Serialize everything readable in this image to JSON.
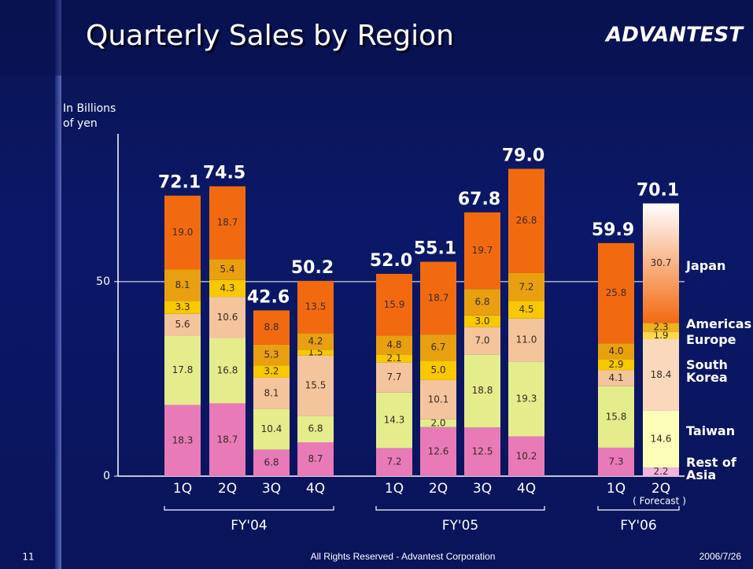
{
  "chart_data": {
    "type": "stacked_bar",
    "title": "Quarterly Sales by Region",
    "logo": "ADVANTEST",
    "ylabel": [
      "In Billions",
      "of yen"
    ],
    "categories": [
      "1Q",
      "2Q",
      "3Q",
      "4Q",
      "1Q",
      "2Q",
      "3Q",
      "4Q",
      "1Q",
      "2Q"
    ],
    "groups": [
      "FY'04",
      "FY'05",
      "FY'06"
    ],
    "annotation": "( Forecast )",
    "ylim": [
      0,
      88
    ],
    "yticks": [
      0,
      50
    ],
    "grid": true,
    "series": [
      {
        "name": "Rest of Asia",
        "color": "#e87ab8",
        "forecast_color": "#f4b4dc",
        "values": [
          18.3,
          18.7,
          6.8,
          8.7,
          7.2,
          12.6,
          12.5,
          10.2,
          7.3,
          2.2
        ],
        "value_labels": [
          "18.3",
          "18.7",
          "6.8",
          "8.7",
          "7.2",
          "12.6",
          "12.5",
          "10.2",
          "7.3",
          "2.2"
        ]
      },
      {
        "name": "Taiwan",
        "color": "#e4ec8c",
        "forecast_color": "#fbfdb8",
        "values": [
          17.8,
          16.8,
          10.4,
          6.8,
          14.3,
          2.0,
          18.8,
          19.3,
          15.8,
          14.6
        ],
        "value_labels": [
          "17.8",
          "16.8",
          "10.4",
          "6.8",
          "14.3",
          "2.0",
          "18.8",
          "19.3",
          "15.8",
          "14.6"
        ]
      },
      {
        "name": "South Korea",
        "color": "#f4c49c",
        "forecast_color": "#fad8bc",
        "values": [
          5.6,
          10.6,
          8.1,
          15.5,
          7.7,
          10.1,
          7.0,
          11.0,
          4.1,
          18.4
        ],
        "value_labels": [
          "5.6",
          "10.6",
          "8.1",
          "15.5",
          "7.7",
          "10.1",
          "7.0",
          "11.0",
          "4.1",
          "18.4"
        ]
      },
      {
        "name": "Europe",
        "color": "#f8c800",
        "forecast_color": "#fcd84c",
        "values": [
          3.3,
          4.3,
          3.2,
          1.5,
          2.1,
          5.0,
          3.0,
          4.5,
          2.9,
          1.9
        ],
        "value_labels": [
          "3.3",
          "4.3",
          "3.2",
          "1.5",
          "2.1",
          "5.0",
          "3.0",
          "4.5",
          "2.9",
          "1.9"
        ]
      },
      {
        "name": "Americas",
        "color": "#e8a010",
        "forecast_color": "#f0b020",
        "values": [
          8.1,
          5.4,
          5.3,
          4.2,
          4.8,
          6.7,
          6.8,
          7.2,
          4.0,
          2.3
        ],
        "value_labels": [
          "8.1",
          "5.4",
          "5.3",
          "4.2",
          "4.8",
          "6.7",
          "6.8",
          "7.2",
          "4.0",
          "2.3"
        ]
      },
      {
        "name": "Japan",
        "color": "#f26a10",
        "forecast_color": "#f26a10",
        "values": [
          19.0,
          18.7,
          8.8,
          13.5,
          15.9,
          18.7,
          19.7,
          26.8,
          25.8,
          30.7
        ],
        "value_labels": [
          "19.0",
          "18.7",
          "8.8",
          "13.5",
          "15.9",
          "18.7",
          "19.7",
          "26.8",
          "25.8",
          "30.7"
        ]
      }
    ],
    "totals": [
      72.1,
      74.5,
      42.6,
      50.2,
      52.0,
      55.1,
      67.8,
      79.0,
      59.9,
      70.1
    ],
    "total_labels": [
      "72.1",
      "74.5",
      "42.6",
      "50.2",
      "52.0",
      "55.1",
      "67.8",
      "79.0",
      "59.9",
      "70.1"
    ]
  },
  "footer": {
    "page": "11",
    "copyright": "All Rights Reserved - Advantest Corporation",
    "date": "2006/7/26"
  }
}
